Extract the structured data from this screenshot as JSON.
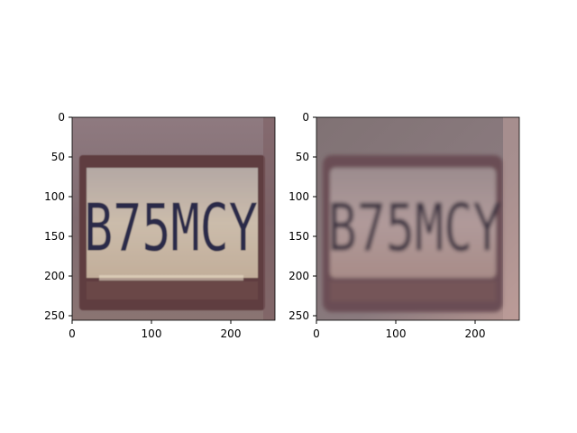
{
  "panels": [
    {
      "x_ticks": [
        "0",
        "100",
        "200"
      ],
      "y_ticks": [
        "0",
        "50",
        "100",
        "150",
        "200",
        "250"
      ],
      "plate_text": "B75MCY",
      "tone": "sharp"
    },
    {
      "x_ticks": [
        "0",
        "100",
        "200"
      ],
      "y_ticks": [
        "0",
        "50",
        "100",
        "150",
        "200",
        "250"
      ],
      "plate_text": "B75MCY",
      "tone": "blurred"
    }
  ],
  "colors": {
    "left_bg": "#8a7478",
    "left_plate": "#c8b8aa",
    "left_text": "#2a2a4a",
    "right_bg": "#86767a",
    "right_plate": "#b39c9c",
    "right_text": "#3a3040"
  }
}
